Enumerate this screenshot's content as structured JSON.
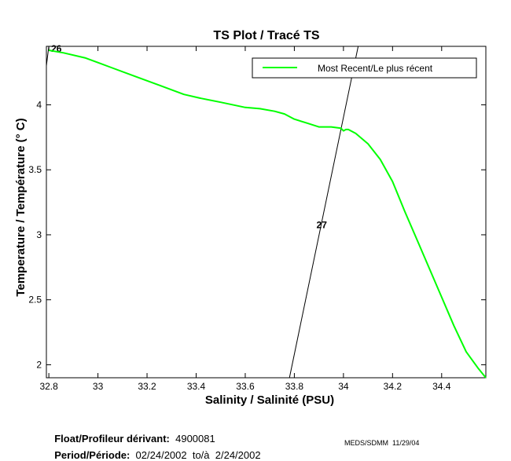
{
  "chart_data": {
    "type": "line",
    "title": "TS Plot / Tracé TS",
    "xlabel": "Salinity / Salinité (PSU)",
    "ylabel": "Temperature / Température (° C)",
    "xlim": [
      32.79,
      34.58
    ],
    "ylim": [
      1.9,
      4.45
    ],
    "xticks": [
      32.8,
      33,
      33.2,
      33.4,
      33.6,
      33.8,
      34,
      34.2,
      34.4
    ],
    "yticks": [
      2,
      2.5,
      3,
      3.5,
      4
    ],
    "grid": false,
    "legend_position": "top-right",
    "series": [
      {
        "name": "Most Recent/Le plus récent",
        "color": "#00ff00",
        "x": [
          32.8,
          32.86,
          32.95,
          33.05,
          33.15,
          33.25,
          33.35,
          33.42,
          33.5,
          33.6,
          33.66,
          33.72,
          33.76,
          33.8,
          33.85,
          33.9,
          33.95,
          33.99,
          34.0,
          34.01,
          34.02,
          34.05,
          34.1,
          34.15,
          34.2,
          34.25,
          34.3,
          34.35,
          34.4,
          34.45,
          34.5,
          34.55,
          34.58
        ],
        "y": [
          4.42,
          4.4,
          4.36,
          4.29,
          4.22,
          4.15,
          4.08,
          4.05,
          4.02,
          3.98,
          3.97,
          3.95,
          3.93,
          3.89,
          3.86,
          3.83,
          3.83,
          3.82,
          3.8,
          3.81,
          3.81,
          3.78,
          3.7,
          3.58,
          3.41,
          3.18,
          2.96,
          2.74,
          2.52,
          2.3,
          2.1,
          1.97,
          1.9
        ]
      }
    ],
    "isopycnals": [
      {
        "label": "27",
        "x": [
          33.78,
          34.06
        ],
        "y": [
          1.9,
          4.45
        ]
      },
      {
        "label": "26",
        "x": [
          32.79,
          32.8
        ],
        "y": [
          4.3,
          4.45
        ]
      }
    ]
  },
  "legend": {
    "label": "Most Recent/Le plus récent"
  },
  "footer": {
    "float_label": "Float/Profileur dérivant:",
    "float_value": "4900081",
    "period_label": "Period/Période:",
    "period_value": "02/24/2002  to/à  2/24/2002",
    "credit": "MEDS/SDMM  11/29/04"
  }
}
